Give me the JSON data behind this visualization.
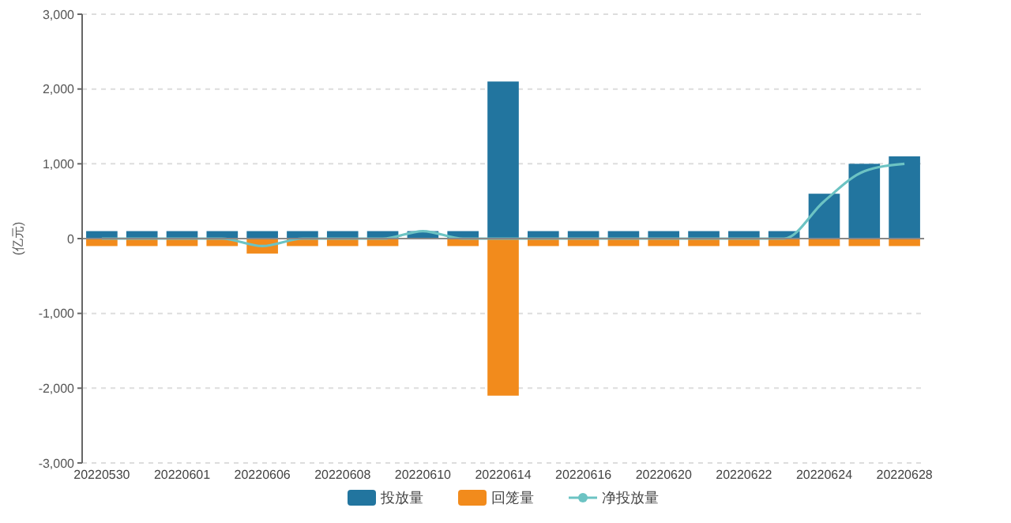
{
  "chart_data": {
    "type": "bar",
    "ylabel": "(亿元)",
    "categories": [
      "20220530",
      null,
      "20220601",
      null,
      "20220606",
      null,
      "20220608",
      null,
      "20220610",
      null,
      "20220614",
      null,
      "20220616",
      null,
      "20220620",
      null,
      "20220622",
      null,
      "20220624",
      null,
      "20220628"
    ],
    "series": [
      {
        "name": "投放量",
        "color": "#22759f",
        "values": [
          100,
          100,
          100,
          100,
          100,
          100,
          100,
          100,
          100,
          100,
          2100,
          100,
          100,
          100,
          100,
          100,
          100,
          100,
          600,
          1000,
          1100
        ]
      },
      {
        "name": "回笼量",
        "color": "#f28b1c",
        "values": [
          -100,
          -100,
          -100,
          -100,
          -200,
          -100,
          -100,
          -100,
          0,
          -100,
          -2100,
          -100,
          -100,
          -100,
          -100,
          -100,
          -100,
          -100,
          -100,
          -100,
          -100
        ]
      },
      {
        "name": "净投放量",
        "type": "line",
        "color": "#6cc3c3",
        "values": [
          0,
          0,
          0,
          0,
          -100,
          0,
          0,
          0,
          100,
          0,
          0,
          0,
          0,
          0,
          0,
          0,
          0,
          0,
          500,
          900,
          1000
        ]
      }
    ],
    "ylim": [
      -3000,
      3000
    ],
    "yticks": [
      {
        "value": -3000,
        "label": "-3,000"
      },
      {
        "value": -2000,
        "label": "-2,000"
      },
      {
        "value": -1000,
        "label": "-1,000"
      },
      0,
      {
        "value": 1000,
        "label": "1,000"
      },
      {
        "value": 2000,
        "label": "2,000"
      },
      {
        "value": 3000,
        "label": "3,000"
      }
    ],
    "stacked": true,
    "grid": "y",
    "legend": "bottom",
    "marker": "none",
    "line_style": "solid"
  }
}
